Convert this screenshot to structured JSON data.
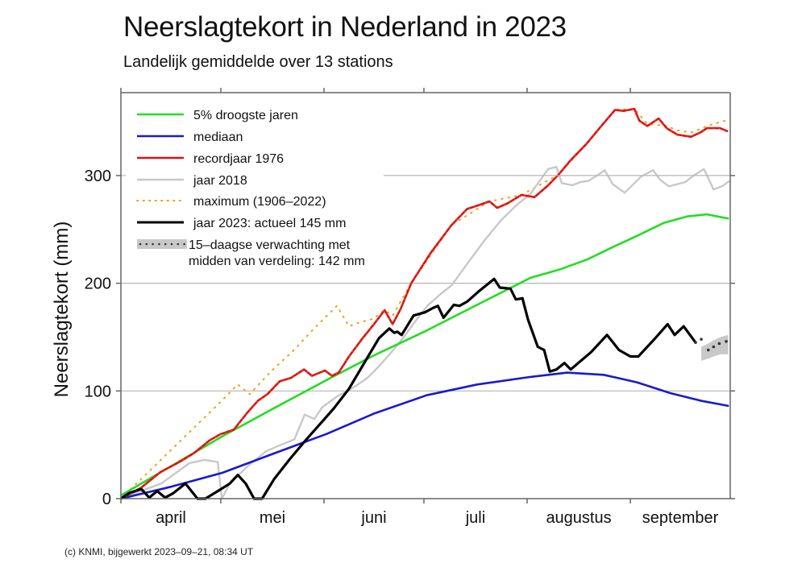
{
  "header": {
    "title": "Neerslagtekort in Nederland in 2023",
    "subtitle": "Landelijk gemiddelde over 13 stations"
  },
  "footer": "(c) KNMI, bijgewerkt 2023–09–21, 08:34 UT",
  "chart_data": {
    "type": "line",
    "title": "Neerslagtekort in Nederland in 2023",
    "subtitle": "Landelijk gemiddelde over 13 stations",
    "xlabel": "",
    "ylabel": "Neerslagtekort (mm)",
    "x_unit": "days since 1 April 2023",
    "xlim": [
      0,
      183
    ],
    "ylim": [
      0,
      377
    ],
    "yticks": [
      0,
      100,
      200,
      300
    ],
    "ytick_labels": [
      "0",
      "100",
      "200",
      "300"
    ],
    "month_ticks": [
      0,
      30,
      61,
      91,
      122,
      153
    ],
    "month_labels": [
      "april",
      "mei",
      "juni",
      "juli",
      "augustus",
      "september"
    ],
    "month_label_positions": [
      15,
      45.5,
      76,
      106.5,
      137.5,
      168
    ],
    "grid": "horizontal at 100, 200, 300",
    "legend_position": "top-left",
    "series": [
      {
        "name": "5% droogste jaren",
        "color": "#22dd22",
        "style": "solid",
        "points": [
          [
            0,
            3
          ],
          [
            15,
            30
          ],
          [
            30.5,
            58
          ],
          [
            46,
            84
          ],
          [
            61.7,
            110
          ],
          [
            76,
            133
          ],
          [
            91.8,
            156
          ],
          [
            107,
            180
          ],
          [
            123,
            205
          ],
          [
            132,
            213
          ],
          [
            140,
            222
          ],
          [
            148,
            234
          ],
          [
            155,
            244
          ],
          [
            163,
            256
          ],
          [
            170,
            262
          ],
          [
            176,
            264
          ],
          [
            182.6,
            260
          ]
        ]
      },
      {
        "name": "mediaan",
        "color": "#1a1acc",
        "style": "solid",
        "points": [
          [
            0,
            0
          ],
          [
            15,
            11
          ],
          [
            30.5,
            24
          ],
          [
            46,
            42
          ],
          [
            61.7,
            60
          ],
          [
            76,
            79
          ],
          [
            91.8,
            96
          ],
          [
            107,
            106
          ],
          [
            123,
            113
          ],
          [
            134,
            117
          ],
          [
            145,
            115
          ],
          [
            155,
            108
          ],
          [
            165,
            98
          ],
          [
            174,
            91
          ],
          [
            182.6,
            86
          ]
        ]
      },
      {
        "name": "recordjaar 1976",
        "color": "#dd1111",
        "style": "solid",
        "points": [
          [
            0,
            0
          ],
          [
            6,
            10
          ],
          [
            12,
            25
          ],
          [
            17,
            33
          ],
          [
            21.8,
            42
          ],
          [
            26.6,
            54
          ],
          [
            30,
            60
          ],
          [
            33.9,
            64
          ],
          [
            38,
            80
          ],
          [
            41.2,
            91
          ],
          [
            44,
            97
          ],
          [
            47.7,
            109
          ],
          [
            51,
            112
          ],
          [
            55,
            120
          ],
          [
            57.4,
            114
          ],
          [
            61.3,
            119
          ],
          [
            63.4,
            114
          ],
          [
            65.4,
            117
          ],
          [
            68.5,
            132
          ],
          [
            72.6,
            149
          ],
          [
            76,
            162
          ],
          [
            79.2,
            175
          ],
          [
            81.6,
            162
          ],
          [
            84,
            176
          ],
          [
            87.2,
            200
          ],
          [
            93,
            228
          ],
          [
            99.3,
            254
          ],
          [
            104,
            269
          ],
          [
            107,
            272
          ],
          [
            110.7,
            276
          ],
          [
            113,
            270
          ],
          [
            116,
            274
          ],
          [
            120.3,
            282
          ],
          [
            124.2,
            280
          ],
          [
            128,
            290
          ],
          [
            131.5,
            301
          ],
          [
            135,
            314
          ],
          [
            139.7,
            329
          ],
          [
            144,
            345
          ],
          [
            148.4,
            361
          ],
          [
            151,
            360
          ],
          [
            154.2,
            362
          ],
          [
            155.7,
            351
          ],
          [
            158.1,
            346
          ],
          [
            161.5,
            353
          ],
          [
            163.9,
            344
          ],
          [
            167.1,
            338
          ],
          [
            171.2,
            336
          ],
          [
            174,
            340
          ],
          [
            176,
            344
          ],
          [
            179.9,
            344
          ],
          [
            182.3,
            341
          ]
        ]
      },
      {
        "name": "jaar 2018",
        "color": "#c8c8c8",
        "style": "solid",
        "points": [
          [
            0,
            0
          ],
          [
            6,
            7
          ],
          [
            12.1,
            14
          ],
          [
            17,
            25
          ],
          [
            20.6,
            33
          ],
          [
            25,
            36
          ],
          [
            29.1,
            34
          ],
          [
            30.3,
            0
          ],
          [
            32.7,
            14
          ],
          [
            38,
            30
          ],
          [
            43.6,
            44
          ],
          [
            48,
            50
          ],
          [
            52.1,
            55
          ],
          [
            55.2,
            78
          ],
          [
            58.1,
            74
          ],
          [
            60.5,
            85
          ],
          [
            65,
            95
          ],
          [
            70.2,
            104
          ],
          [
            74,
            112
          ],
          [
            77.5,
            123
          ],
          [
            81,
            135
          ],
          [
            84.7,
            149
          ],
          [
            88,
            163
          ],
          [
            92,
            179
          ],
          [
            96,
            190
          ],
          [
            99.3,
            198
          ],
          [
            104,
            218
          ],
          [
            109,
            239
          ],
          [
            114,
            258
          ],
          [
            118.6,
            272
          ],
          [
            123,
            283
          ],
          [
            128.3,
            306
          ],
          [
            130.8,
            308
          ],
          [
            132.4,
            293
          ],
          [
            135.6,
            291
          ],
          [
            138,
            294
          ],
          [
            140.4,
            295
          ],
          [
            143,
            300
          ],
          [
            145.3,
            305
          ],
          [
            147.7,
            292
          ],
          [
            151.3,
            284
          ],
          [
            156.2,
            299
          ],
          [
            159.8,
            305
          ],
          [
            162,
            296
          ],
          [
            164.6,
            290
          ],
          [
            169.5,
            294
          ],
          [
            172,
            300
          ],
          [
            175.1,
            306
          ],
          [
            178,
            287
          ],
          [
            180.5,
            290
          ],
          [
            182.8,
            295
          ]
        ]
      },
      {
        "name": "maximum (1906–2022)",
        "color": "#f0a020",
        "style": "dotted",
        "points": [
          [
            0,
            0
          ],
          [
            10,
            30
          ],
          [
            20,
            60
          ],
          [
            30,
            90
          ],
          [
            35.1,
            106
          ],
          [
            38.7,
            97
          ],
          [
            45,
            118
          ],
          [
            52,
            138
          ],
          [
            58,
            158
          ],
          [
            64.9,
            179
          ],
          [
            68.5,
            160
          ],
          [
            72,
            164
          ],
          [
            75.8,
            167
          ],
          [
            79.2,
            175
          ],
          [
            81.6,
            170
          ],
          [
            87.2,
            200
          ],
          [
            99.3,
            254
          ],
          [
            110.7,
            276
          ],
          [
            120.3,
            282
          ],
          [
            131.5,
            301
          ],
          [
            139.7,
            329
          ],
          [
            148.4,
            361
          ],
          [
            154.2,
            362
          ],
          [
            158.1,
            348
          ],
          [
            163.9,
            346
          ],
          [
            167.1,
            342
          ],
          [
            171.2,
            340
          ],
          [
            177,
            347
          ],
          [
            182.6,
            352
          ]
        ]
      },
      {
        "name": "jaar 2023: actueel 145 mm",
        "color": "#000000",
        "style": "solid",
        "points": [
          [
            0,
            0
          ],
          [
            2.4,
            5
          ],
          [
            6.1,
            9
          ],
          [
            8.5,
            1
          ],
          [
            10.9,
            7
          ],
          [
            13.3,
            1
          ],
          [
            15.7,
            5
          ],
          [
            19.4,
            14
          ],
          [
            23,
            0
          ],
          [
            25.4,
            0
          ],
          [
            29.1,
            7
          ],
          [
            32.7,
            14
          ],
          [
            35.1,
            22
          ],
          [
            37.5,
            14
          ],
          [
            40,
            0
          ],
          [
            42.4,
            0
          ],
          [
            46,
            18
          ],
          [
            50.8,
            37
          ],
          [
            55.7,
            55
          ],
          [
            60,
            70
          ],
          [
            64,
            84
          ],
          [
            68.5,
            102
          ],
          [
            74.6,
            134
          ],
          [
            77.5,
            149
          ],
          [
            80.6,
            158
          ],
          [
            82.1,
            154
          ],
          [
            83,
            155
          ],
          [
            84.3,
            152
          ],
          [
            87.9,
            170
          ],
          [
            91.3,
            173
          ],
          [
            93.7,
            177
          ],
          [
            95.2,
            179
          ],
          [
            96.9,
            168
          ],
          [
            100,
            180
          ],
          [
            101.7,
            179
          ],
          [
            104,
            183
          ],
          [
            107.3,
            192
          ],
          [
            112.1,
            204
          ],
          [
            113.8,
            196
          ],
          [
            117,
            195
          ],
          [
            118.6,
            185
          ],
          [
            120.6,
            186
          ],
          [
            122.3,
            166
          ],
          [
            125.2,
            141
          ],
          [
            127.1,
            138
          ],
          [
            128.8,
            118
          ],
          [
            130.8,
            120
          ],
          [
            133.2,
            126
          ],
          [
            135.1,
            120
          ],
          [
            141.2,
            136
          ],
          [
            146,
            152
          ],
          [
            149.6,
            138
          ],
          [
            153,
            132
          ],
          [
            155.4,
            132
          ],
          [
            160.5,
            149
          ],
          [
            164.2,
            162
          ],
          [
            166.3,
            152
          ],
          [
            169,
            160
          ],
          [
            172.6,
            145
          ]
        ]
      },
      {
        "name": "15–daagse verwachting met midden van verdeling: 142 mm",
        "color": "#333333",
        "band_color": "#c8c8c8",
        "style": "dotted-with-band",
        "points": [
          [
            172.6,
            145
          ],
          [
            174.3,
            148
          ],
          [
            176.4,
            138
          ],
          [
            178,
            141
          ],
          [
            179.7,
            144
          ],
          [
            181.8,
            146
          ]
        ],
        "band_upper": [
          [
            174.3,
            141
          ],
          [
            176.4,
            144
          ],
          [
            178,
            147
          ],
          [
            180,
            150
          ],
          [
            182.4,
            152
          ]
        ],
        "band_lower": [
          [
            174.3,
            128
          ],
          [
            176.4,
            130
          ],
          [
            178,
            132
          ],
          [
            180,
            134
          ],
          [
            182.4,
            134
          ]
        ]
      }
    ],
    "legend": [
      {
        "label": "5% droogste jaren",
        "color": "#22dd22",
        "style": "solid"
      },
      {
        "label": "mediaan",
        "color": "#1a1acc",
        "style": "solid"
      },
      {
        "label": "recordjaar 1976",
        "color": "#dd1111",
        "style": "solid"
      },
      {
        "label": "jaar 2018",
        "color": "#c8c8c8",
        "style": "solid"
      },
      {
        "label": "maximum (1906–2022)",
        "color": "#f0a020",
        "style": "dotted"
      },
      {
        "label": "jaar 2023: actueel 145 mm",
        "color": "#000000",
        "style": "solid"
      },
      {
        "label": "15–daagse verwachting met",
        "label2": "midden van verdeling: 142 mm",
        "color": "#333333",
        "style": "dotted-band"
      }
    ]
  }
}
